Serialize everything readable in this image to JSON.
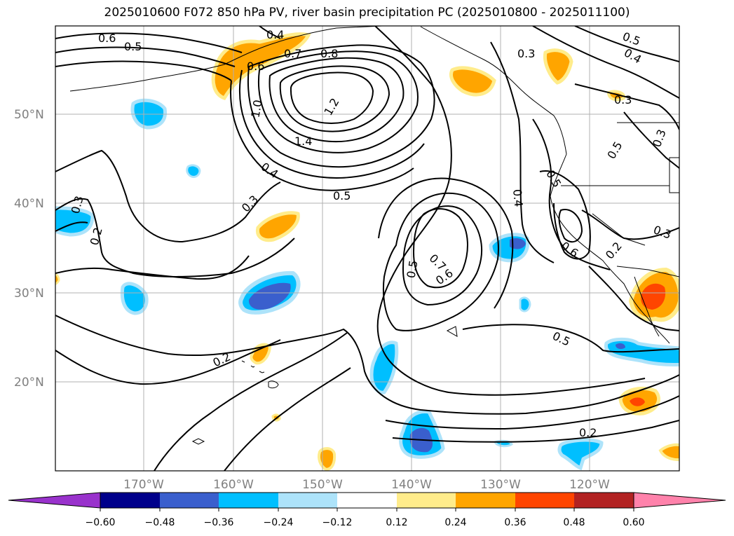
{
  "title": "2025010600 F072 850 hPa PV, river basin precipitation PC (2025010800 - 2025011100)",
  "map": {
    "lat_labels": [
      {
        "text": "50°N",
        "lat": 50
      },
      {
        "text": "40°N",
        "lat": 40
      },
      {
        "text": "30°N",
        "lat": 30
      },
      {
        "text": "20°N",
        "lat": 20
      }
    ],
    "lon_labels": [
      {
        "text": "170°W",
        "lon": -170
      },
      {
        "text": "160°W",
        "lon": -160
      },
      {
        "text": "150°W",
        "lon": -150
      },
      {
        "text": "140°W",
        "lon": -140
      },
      {
        "text": "130°W",
        "lon": -130
      },
      {
        "text": "120°W",
        "lon": -120
      }
    ],
    "contour_labels": [
      "0.6",
      "0.5",
      "0.4",
      "0.7",
      "0.8",
      "0.6",
      "1.0",
      "1.2",
      "1.4",
      "0.4",
      "0.3",
      "0.5",
      "0.3",
      "0.2",
      "0.5",
      "0.7",
      "0.6",
      "0.4",
      "0.5",
      "0.6",
      "0.2",
      "0.3",
      "0.5",
      "0.3",
      "0.3",
      "0.5",
      "0.4",
      "0.3",
      "0.2",
      "0.5",
      "0.2"
    ]
  },
  "colorbar": {
    "ticks": [
      "−0.60",
      "−0.48",
      "−0.36",
      "−0.24",
      "−0.12",
      "0.12",
      "0.24",
      "0.36",
      "0.48",
      "0.60"
    ],
    "colors": [
      "#9932CC",
      "#00008B",
      "#3A5FCD",
      "#00BFFF",
      "#ADE3FA",
      "#FFFFFF",
      "#FFEC8B",
      "#FFA500",
      "#FF4500",
      "#B22222",
      "#FF82AB"
    ]
  }
}
